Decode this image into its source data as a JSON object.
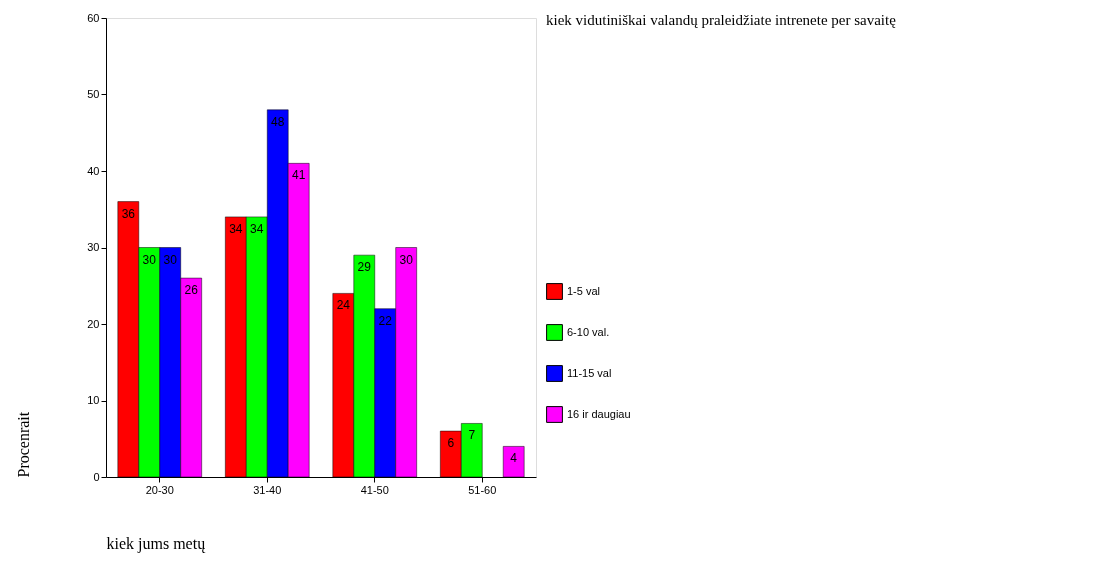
{
  "chart_data": {
    "type": "bar",
    "legend_title": "kiek vidutiniškai valandų praleidžiate intrenete per savaitę",
    "xlabel": "kiek jums metų",
    "ylabel": "Procenrait",
    "categories": [
      "20-30",
      "31-40",
      "41-50",
      "51-60"
    ],
    "series": [
      {
        "name": "1-5 val",
        "color": "#ff0000",
        "values": [
          36,
          34,
          24,
          6
        ]
      },
      {
        "name": "6-10 val.",
        "color": "#00ff00",
        "values": [
          30,
          34,
          29,
          7
        ]
      },
      {
        "name": "11-15 val",
        "color": "#0000ff",
        "values": [
          30,
          48,
          22,
          null
        ]
      },
      {
        "name": "16 ir daugiau",
        "color": "#ff00ff",
        "values": [
          26,
          41,
          30,
          4
        ]
      }
    ],
    "ylim": [
      0,
      60
    ],
    "yticks": [
      0,
      10,
      20,
      30,
      40,
      50,
      60
    ],
    "data_labels": true,
    "grid": false,
    "legend": "right"
  }
}
